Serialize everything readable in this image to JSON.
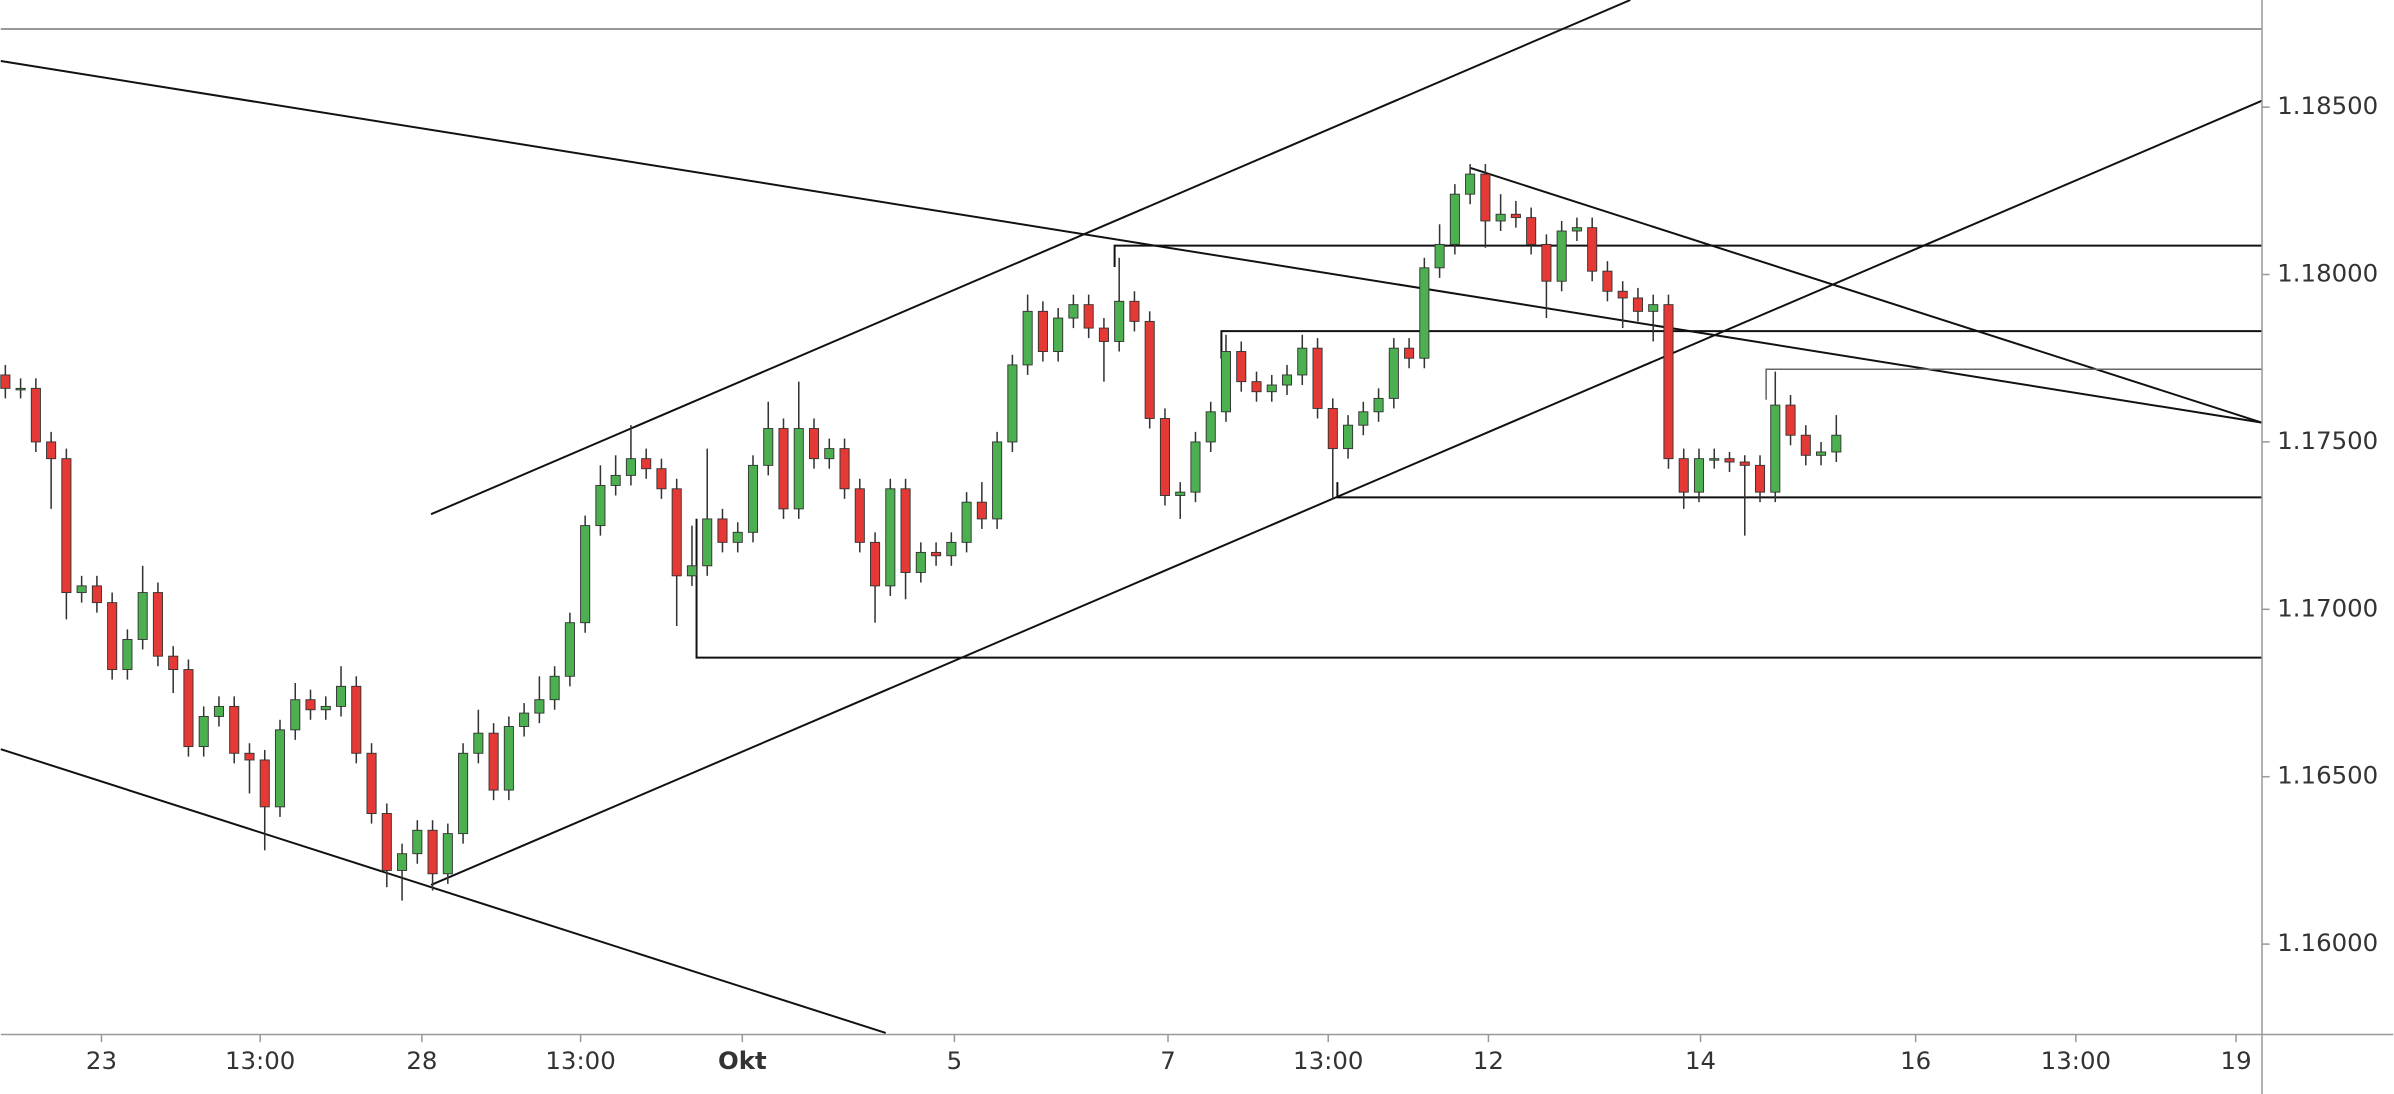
{
  "chart_data": {
    "type": "candlestick",
    "up_color": "#4caf50",
    "down_color": "#e53935",
    "ylim": [
      1.1573,
      1.1882
    ],
    "yticks": [
      {
        "value": 1.185,
        "label": "1.18500"
      },
      {
        "value": 1.18,
        "label": "1.18000"
      },
      {
        "value": 1.175,
        "label": "1.17500"
      },
      {
        "value": 1.17,
        "label": "1.17000"
      },
      {
        "value": 1.165,
        "label": "1.16500"
      },
      {
        "value": 1.16,
        "label": "1.16000"
      }
    ],
    "xlim": [
      -0.3,
      147.9
    ],
    "xticks": [
      {
        "value": 6.3,
        "label": "23"
      },
      {
        "value": 16.7,
        "label": "13:00"
      },
      {
        "value": 27.3,
        "label": "28"
      },
      {
        "value": 37.7,
        "label": "13:00"
      },
      {
        "value": 48.3,
        "label": "Okt"
      },
      {
        "value": 62.2,
        "label": "5"
      },
      {
        "value": 76.2,
        "label": "7"
      },
      {
        "value": 86.7,
        "label": "13:00"
      },
      {
        "value": 97.2,
        "label": "12"
      },
      {
        "value": 111.1,
        "label": "14"
      },
      {
        "value": 125.2,
        "label": "16"
      },
      {
        "value": 135.7,
        "label": "13:00"
      },
      {
        "value": 146.2,
        "label": "19"
      }
    ],
    "x": [
      0,
      1,
      2,
      3,
      4,
      5,
      6,
      7,
      8,
      9,
      10,
      11,
      12,
      13,
      14,
      15,
      16,
      17,
      18,
      19,
      20,
      21,
      22,
      23,
      24,
      25,
      26,
      27,
      28,
      29,
      30,
      31,
      32,
      33,
      34,
      35,
      36,
      37,
      38,
      39,
      40,
      41,
      42,
      43,
      44,
      45,
      46,
      47,
      48,
      49,
      50,
      51,
      52,
      53,
      54,
      55,
      56,
      57,
      58,
      59,
      60,
      61,
      62,
      63,
      64,
      65,
      66,
      67,
      68,
      69,
      70,
      71,
      72,
      73,
      74,
      75,
      76,
      77,
      78,
      79,
      80,
      81,
      82,
      83,
      84,
      85,
      86,
      87,
      88,
      89,
      90,
      91,
      92,
      93,
      94,
      95,
      96,
      97,
      98,
      99,
      100,
      101,
      102,
      103,
      104,
      105,
      106,
      107,
      108,
      109,
      110,
      111,
      112,
      113,
      114,
      115,
      116,
      117,
      118,
      119,
      120
    ],
    "open": [
      1.177,
      1.1766,
      1.1766,
      1.175,
      1.1745,
      1.1705,
      1.1707,
      1.1702,
      1.1682,
      1.1691,
      1.1705,
      1.1686,
      1.1682,
      1.1659,
      1.1668,
      1.1671,
      1.1657,
      1.1655,
      1.1641,
      1.1664,
      1.1673,
      1.167,
      1.1671,
      1.1677,
      1.1657,
      1.1639,
      1.1622,
      1.1627,
      1.1634,
      1.1621,
      1.1633,
      1.1657,
      1.1663,
      1.1646,
      1.1665,
      1.1669,
      1.1673,
      1.168,
      1.1696,
      1.1725,
      1.1737,
      1.174,
      1.1745,
      1.1742,
      1.1736,
      1.171,
      1.1713,
      1.1727,
      1.172,
      1.1723,
      1.1743,
      1.1754,
      1.173,
      1.1754,
      1.1745,
      1.1748,
      1.1736,
      1.172,
      1.1707,
      1.1736,
      1.1711,
      1.1717,
      1.1716,
      1.172,
      1.1732,
      1.1727,
      1.175,
      1.1773,
      1.1789,
      1.1777,
      1.1787,
      1.1791,
      1.1784,
      1.178,
      1.1792,
      1.1786,
      1.1757,
      1.1734,
      1.1735,
      1.175,
      1.1759,
      1.1777,
      1.1768,
      1.1765,
      1.1767,
      1.177,
      1.1778,
      1.176,
      1.1748,
      1.1755,
      1.1759,
      1.1763,
      1.1778,
      1.1775,
      1.1802,
      1.1809,
      1.1824,
      1.183,
      1.1816,
      1.1818,
      1.1817,
      1.1809,
      1.1798,
      1.1813,
      1.1814,
      1.1801,
      1.1795,
      1.1793,
      1.1789,
      1.1791,
      1.1745,
      1.1735,
      1.1745,
      1.1745,
      1.1744,
      1.1743,
      1.1735,
      1.1761,
      1.1752,
      1.1746,
      1.1747
    ],
    "high": [
      1.1773,
      1.1769,
      1.1769,
      1.1753,
      1.1748,
      1.171,
      1.171,
      1.1705,
      1.1694,
      1.1713,
      1.1708,
      1.1689,
      1.1685,
      1.1671,
      1.1674,
      1.1674,
      1.166,
      1.1658,
      1.1667,
      1.1678,
      1.1676,
      1.1674,
      1.1683,
      1.168,
      1.166,
      1.1642,
      1.163,
      1.1637,
      1.1637,
      1.1636,
      1.166,
      1.167,
      1.1666,
      1.1668,
      1.1672,
      1.168,
      1.1683,
      1.1699,
      1.1728,
      1.1743,
      1.1746,
      1.1755,
      1.1748,
      1.1745,
      1.1739,
      1.1725,
      1.1748,
      1.173,
      1.1726,
      1.1746,
      1.1762,
      1.1757,
      1.1768,
      1.1757,
      1.1751,
      1.1751,
      1.1739,
      1.1723,
      1.1739,
      1.1739,
      1.172,
      1.172,
      1.1723,
      1.1735,
      1.1738,
      1.1753,
      1.1776,
      1.1794,
      1.1792,
      1.179,
      1.1794,
      1.1794,
      1.1787,
      1.1805,
      1.1795,
      1.1789,
      1.176,
      1.1738,
      1.1753,
      1.1762,
      1.1782,
      1.178,
      1.1771,
      1.177,
      1.1773,
      1.1782,
      1.1781,
      1.1763,
      1.1758,
      1.1762,
      1.1766,
      1.1781,
      1.1781,
      1.1805,
      1.1815,
      1.1827,
      1.1833,
      1.1833,
      1.1824,
      1.1822,
      1.182,
      1.1812,
      1.1816,
      1.1817,
      1.1817,
      1.1804,
      1.1798,
      1.1796,
      1.1794,
      1.1794,
      1.1748,
      1.1748,
      1.1748,
      1.1747,
      1.1746,
      1.1746,
      1.1771,
      1.1764,
      1.1755,
      1.175,
      1.1758
    ],
    "low": [
      1.1763,
      1.1763,
      1.1747,
      1.173,
      1.1697,
      1.1702,
      1.1699,
      1.1679,
      1.1679,
      1.1688,
      1.1683,
      1.1675,
      1.1656,
      1.1656,
      1.1665,
      1.1654,
      1.1645,
      1.1628,
      1.1638,
      1.1661,
      1.1667,
      1.1667,
      1.1668,
      1.1654,
      1.1636,
      1.1617,
      1.1613,
      1.1624,
      1.1616,
      1.1618,
      1.163,
      1.1654,
      1.1643,
      1.1643,
      1.1662,
      1.1666,
      1.167,
      1.1677,
      1.1693,
      1.1722,
      1.1734,
      1.1737,
      1.1739,
      1.1733,
      1.1695,
      1.1707,
      1.171,
      1.1717,
      1.1717,
      1.172,
      1.174,
      1.1727,
      1.1727,
      1.1742,
      1.1742,
      1.1733,
      1.1717,
      1.1696,
      1.1704,
      1.1703,
      1.1708,
      1.1713,
      1.1713,
      1.1717,
      1.1724,
      1.1724,
      1.1747,
      1.177,
      1.1774,
      1.1774,
      1.1784,
      1.1781,
      1.1768,
      1.1777,
      1.1783,
      1.1754,
      1.1731,
      1.1727,
      1.1732,
      1.1747,
      1.1756,
      1.1765,
      1.1762,
      1.1762,
      1.1764,
      1.1767,
      1.1757,
      1.1733,
      1.1745,
      1.1752,
      1.1756,
      1.176,
      1.1772,
      1.1772,
      1.1799,
      1.1806,
      1.1821,
      1.1808,
      1.1813,
      1.1814,
      1.1806,
      1.1787,
      1.1795,
      1.181,
      1.1798,
      1.1792,
      1.1784,
      1.1786,
      1.178,
      1.1742,
      1.173,
      1.1732,
      1.1742,
      1.1741,
      1.1722,
      1.1732,
      1.1732,
      1.1749,
      1.1743,
      1.1743,
      1.1744
    ],
    "close": [
      1.1766,
      1.1766,
      1.175,
      1.1745,
      1.1705,
      1.1707,
      1.1702,
      1.1682,
      1.1691,
      1.1705,
      1.1686,
      1.1682,
      1.1659,
      1.1668,
      1.1671,
      1.1657,
      1.1655,
      1.1641,
      1.1664,
      1.1673,
      1.167,
      1.1671,
      1.1677,
      1.1657,
      1.1639,
      1.1622,
      1.1627,
      1.1634,
      1.1621,
      1.1633,
      1.1657,
      1.1663,
      1.1646,
      1.1665,
      1.1669,
      1.1673,
      1.168,
      1.1696,
      1.1725,
      1.1737,
      1.174,
      1.1745,
      1.1742,
      1.1736,
      1.171,
      1.1713,
      1.1727,
      1.172,
      1.1723,
      1.1743,
      1.1754,
      1.173,
      1.1754,
      1.1745,
      1.1748,
      1.1736,
      1.172,
      1.1707,
      1.1736,
      1.1711,
      1.1717,
      1.1716,
      1.172,
      1.1732,
      1.1727,
      1.175,
      1.1773,
      1.1789,
      1.1777,
      1.1787,
      1.1791,
      1.1784,
      1.178,
      1.1792,
      1.1786,
      1.1757,
      1.1734,
      1.1735,
      1.175,
      1.1759,
      1.1777,
      1.1768,
      1.1765,
      1.1767,
      1.177,
      1.1778,
      1.176,
      1.1748,
      1.1755,
      1.1759,
      1.1763,
      1.1778,
      1.1775,
      1.1802,
      1.1809,
      1.1824,
      1.183,
      1.1816,
      1.1818,
      1.1817,
      1.1809,
      1.1798,
      1.1813,
      1.1814,
      1.1801,
      1.1795,
      1.1793,
      1.1789,
      1.1791,
      1.1745,
      1.1735,
      1.1745,
      1.1745,
      1.1744,
      1.1743,
      1.1735,
      1.1761,
      1.1752,
      1.1746,
      1.1747,
      1.1752
    ]
  }
}
